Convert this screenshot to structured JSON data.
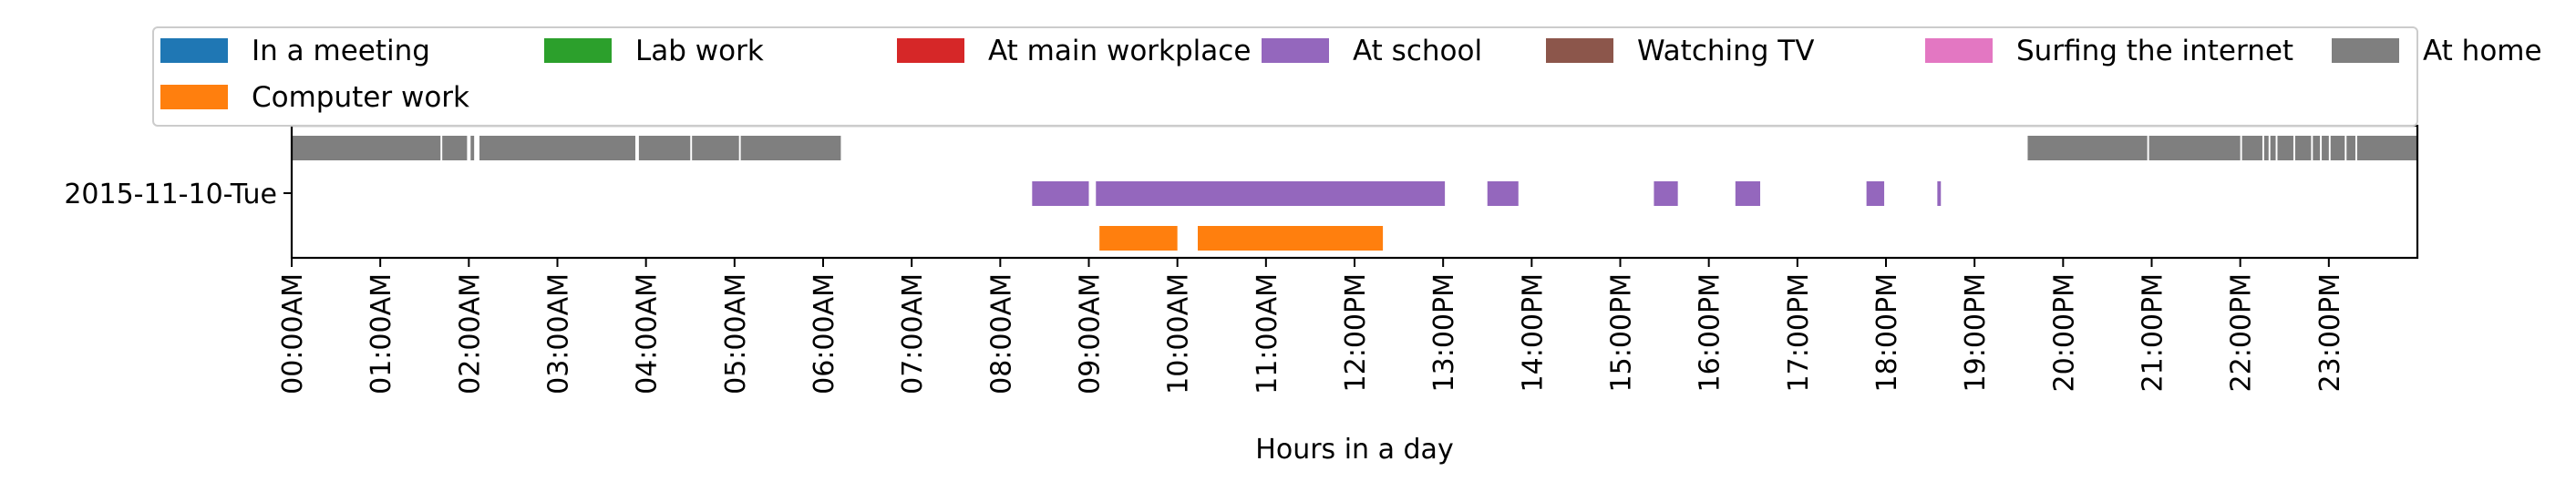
{
  "chart_data": {
    "type": "timeline",
    "xlabel": "Hours in a day",
    "x_unit": "hours",
    "xlim": [
      0,
      24
    ],
    "x_ticks": [
      "00:00AM",
      "01:00AM",
      "02:00AM",
      "03:00AM",
      "04:00AM",
      "05:00AM",
      "06:00AM",
      "07:00AM",
      "08:00AM",
      "09:00AM",
      "10:00AM",
      "11:00AM",
      "12:00PM",
      "13:00PM",
      "14:00PM",
      "15:00PM",
      "16:00PM",
      "17:00PM",
      "18:00PM",
      "19:00PM",
      "20:00PM",
      "21:00PM",
      "22:00PM",
      "23:00PM"
    ],
    "row_label": "2015-11-10-Tue",
    "legend_position": "top",
    "legend": [
      {
        "name": "In a meeting",
        "color": "#1f77b4"
      },
      {
        "name": "Lab work",
        "color": "#2ca02c"
      },
      {
        "name": "At main workplace",
        "color": "#d62728"
      },
      {
        "name": "At school",
        "color": "#9467bd"
      },
      {
        "name": "Watching TV",
        "color": "#8c564b"
      },
      {
        "name": "Surfing the internet",
        "color": "#e377c2"
      },
      {
        "name": "At home",
        "color": "#7f7f7f"
      },
      {
        "name": "Computer work",
        "color": "#ff7f0e"
      }
    ],
    "series": [
      {
        "name": "At home",
        "color": "#7f7f7f",
        "lane": 0,
        "intervals": [
          [
            0.0,
            1.68
          ],
          [
            1.7,
            1.98
          ],
          [
            2.02,
            2.06
          ],
          [
            2.12,
            3.88
          ],
          [
            3.92,
            4.5
          ],
          [
            4.52,
            5.05
          ],
          [
            5.07,
            6.2
          ],
          [
            19.6,
            20.95
          ],
          [
            20.97,
            22.0
          ],
          [
            22.02,
            22.25
          ],
          [
            22.27,
            22.32
          ],
          [
            22.34,
            22.4
          ],
          [
            22.42,
            22.6
          ],
          [
            22.62,
            22.8
          ],
          [
            22.82,
            22.9
          ],
          [
            22.92,
            23.0
          ],
          [
            23.02,
            23.18
          ],
          [
            23.2,
            23.3
          ],
          [
            23.32,
            24.0
          ]
        ]
      },
      {
        "name": "At school",
        "color": "#9467bd",
        "lane": 1,
        "intervals": [
          [
            8.36,
            9.0
          ],
          [
            9.08,
            13.02
          ],
          [
            13.5,
            13.85
          ],
          [
            15.38,
            15.65
          ],
          [
            16.3,
            16.58
          ],
          [
            17.78,
            17.98
          ],
          [
            18.58,
            18.62
          ]
        ]
      },
      {
        "name": "Computer work",
        "color": "#ff7f0e",
        "lane": 2,
        "intervals": [
          [
            9.12,
            10.0
          ],
          [
            10.23,
            12.32
          ]
        ]
      }
    ]
  }
}
